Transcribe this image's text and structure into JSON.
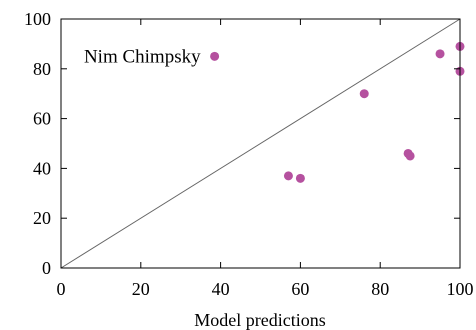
{
  "chart_data": {
    "type": "scatter",
    "title": "",
    "xlabel": "Model predictions",
    "ylabel": "",
    "xlim": [
      0,
      100
    ],
    "ylim": [
      0,
      100
    ],
    "xticks": [
      0,
      20,
      40,
      60,
      80,
      100
    ],
    "yticks": [
      0,
      20,
      40,
      60,
      80,
      100
    ],
    "grid": false,
    "legend": "none",
    "reference_line": {
      "from": [
        0,
        0
      ],
      "to": [
        100,
        100
      ]
    },
    "series": [
      {
        "color": "#b5519f",
        "points": [
          {
            "x": 38.5,
            "y": 85
          },
          {
            "x": 57,
            "y": 37
          },
          {
            "x": 60,
            "y": 36
          },
          {
            "x": 76,
            "y": 70
          },
          {
            "x": 87,
            "y": 46
          },
          {
            "x": 87.5,
            "y": 45
          },
          {
            "x": 95,
            "y": 86
          },
          {
            "x": 100,
            "y": 89
          },
          {
            "x": 100,
            "y": 79
          }
        ]
      }
    ],
    "annotations": [
      {
        "text": "Nim Chimpsky",
        "x": 38.5,
        "y": 85
      }
    ],
    "colors": {
      "axis": "#000000",
      "reference_line": "#666666"
    }
  }
}
